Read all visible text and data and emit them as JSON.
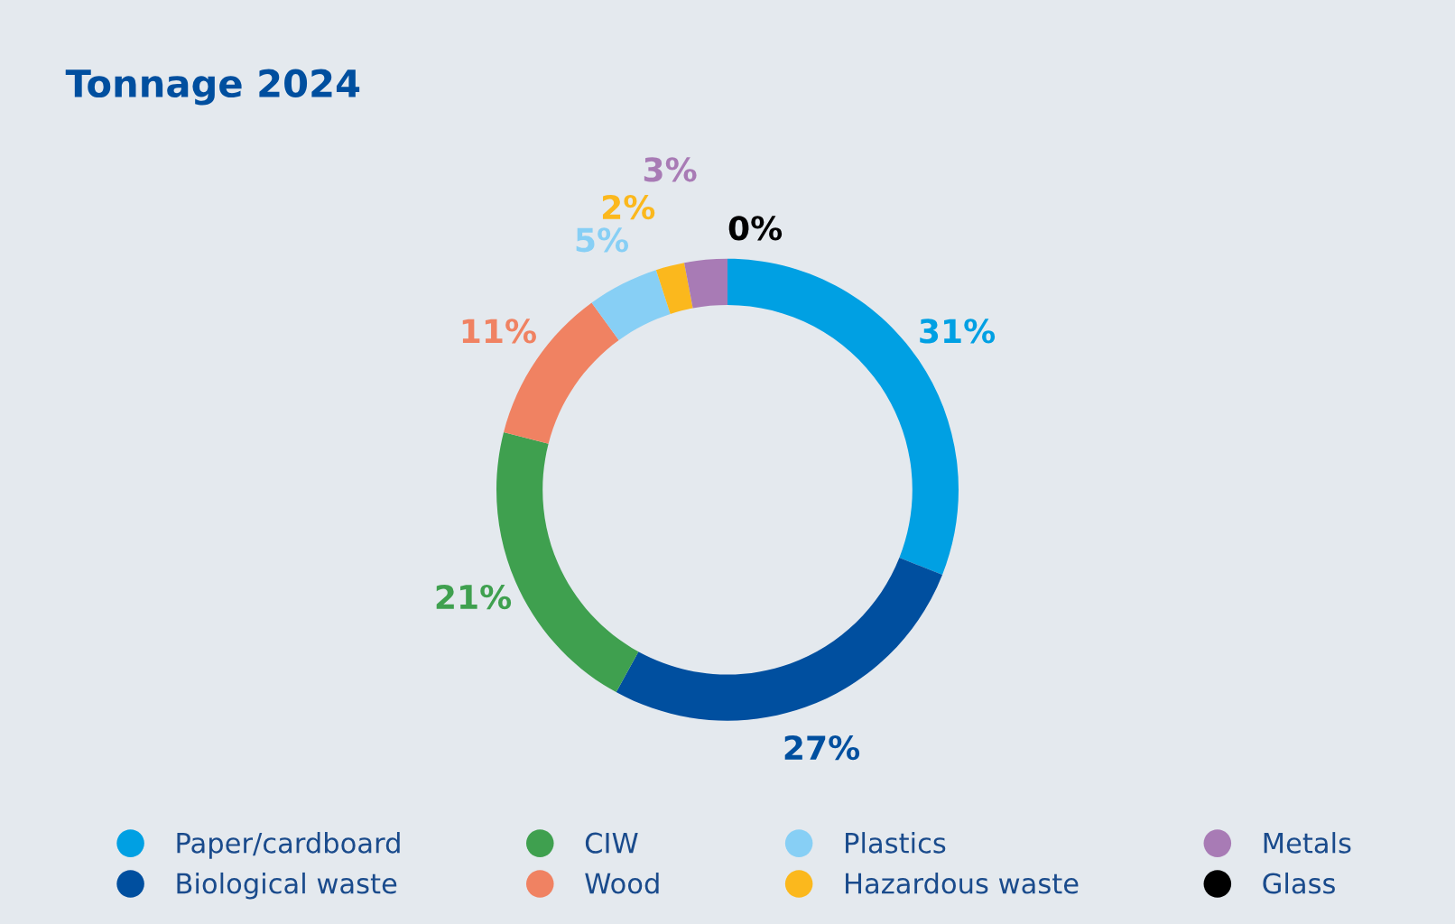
{
  "chart_data": {
    "type": "donut",
    "title": "Tonnage 2024",
    "categories": [
      "Paper/cardboard",
      "Biological waste",
      "CIW",
      "Wood",
      "Plastics",
      "Hazardous waste",
      "Metals",
      "Glass"
    ],
    "values": [
      31,
      27,
      21,
      11,
      5,
      2,
      3,
      0
    ],
    "value_labels": [
      "31%",
      "27%",
      "21%",
      "11%",
      "5%",
      "2%",
      "3%",
      "0%"
    ],
    "colors": [
      "#00a0e3",
      "#004f9f",
      "#3fa04f",
      "#f08262",
      "#87cff5",
      "#fbb81d",
      "#a87bb5",
      "#000000"
    ],
    "legend": "bottom"
  }
}
